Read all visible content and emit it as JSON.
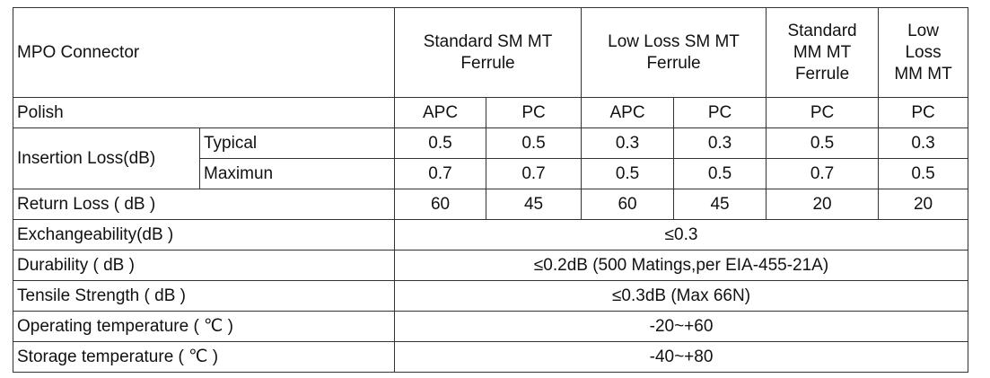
{
  "table": {
    "header": [
      [
        "MPO Connector"
      ],
      [
        "Standard SM MT",
        "Ferrule"
      ],
      [
        "Low Loss SM MT",
        "Ferrule"
      ],
      [
        "Standard",
        "MM MT",
        "Ferrule"
      ],
      [
        "Low",
        "Loss",
        "MM MT"
      ]
    ],
    "polish": {
      "label": "Polish",
      "values": [
        "APC",
        "PC",
        "APC",
        "PC",
        "PC",
        "PC"
      ]
    },
    "insertion_loss": {
      "label": "Insertion Loss(dB)",
      "rows": [
        {
          "name": "Typical",
          "values": [
            0.5,
            0.5,
            0.3,
            0.3,
            0.5,
            0.3
          ]
        },
        {
          "name": "Maximun",
          "values": [
            0.7,
            0.7,
            0.5,
            0.5,
            0.7,
            0.5
          ]
        }
      ]
    },
    "return_loss": {
      "label": "Return Loss ( dB )",
      "values": [
        60,
        45,
        60,
        45,
        20,
        20
      ]
    },
    "specs": [
      {
        "label": "Exchangeability(dB )",
        "value": "≤0.3"
      },
      {
        "label": "Durability ( dB )",
        "value": "≤0.2dB (500 Matings,per EIA-455-21A)"
      },
      {
        "label": "Tensile Strength ( dB )",
        "value": "≤0.3dB (Max 66N)"
      },
      {
        "label": "Operating temperature ( ℃ )",
        "value": "-20~+60"
      },
      {
        "label": "Storage temperature ( ℃ )",
        "value": "-40~+80"
      }
    ]
  }
}
